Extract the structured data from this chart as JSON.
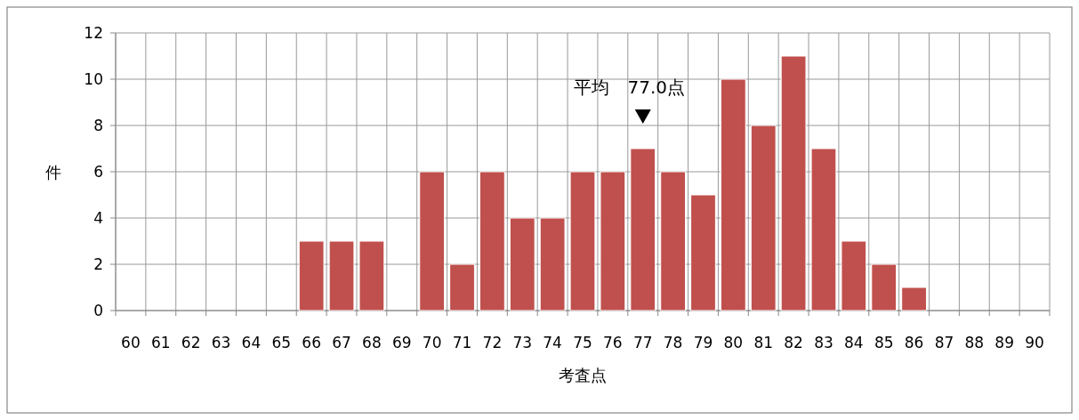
{
  "chart_data": {
    "type": "bar",
    "xlabel": "考査点",
    "ylabel": "件",
    "categories": [
      "60",
      "61",
      "62",
      "63",
      "64",
      "65",
      "66",
      "67",
      "68",
      "69",
      "70",
      "71",
      "72",
      "73",
      "74",
      "75",
      "76",
      "77",
      "78",
      "79",
      "80",
      "81",
      "82",
      "83",
      "84",
      "85",
      "86",
      "87",
      "88",
      "89",
      "90"
    ],
    "values": [
      0,
      0,
      0,
      0,
      0,
      0,
      3,
      3,
      3,
      0,
      6,
      2,
      6,
      4,
      4,
      6,
      6,
      7,
      6,
      5,
      10,
      8,
      11,
      7,
      3,
      2,
      1,
      0,
      0,
      0,
      0
    ],
    "color": "#c0504d",
    "ylim": [
      0,
      12
    ],
    "yticks": [
      0,
      2,
      4,
      6,
      8,
      10,
      12
    ],
    "grid": true,
    "annotations": [
      {
        "text": "平均　77.0点",
        "x": "77",
        "y": 7
      }
    ]
  }
}
